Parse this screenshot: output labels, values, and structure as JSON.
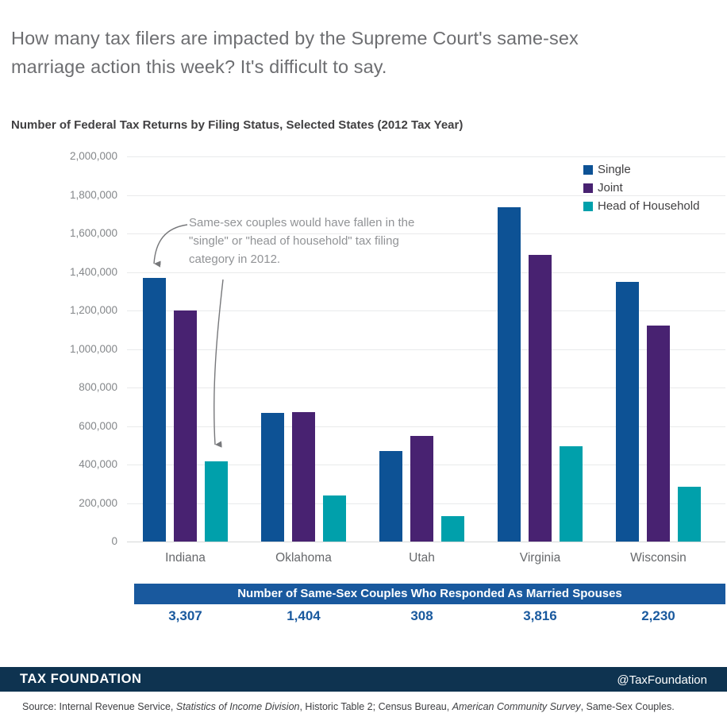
{
  "page": {
    "title": "How many tax filers are impacted by the Supreme Court's same-sex marriage action this week? It's difficult to say."
  },
  "chart_data": {
    "type": "bar",
    "title": "Number of Federal Tax Returns by Filing Status, Selected States (2012 Tax Year)",
    "categories": [
      "Indiana",
      "Oklahoma",
      "Utah",
      "Virginia",
      "Wisconsin"
    ],
    "series": [
      {
        "name": "Single",
        "color": "#0d5295",
        "values": [
          1370000,
          670000,
          472000,
          1735000,
          1350000
        ]
      },
      {
        "name": "Joint",
        "color": "#482271",
        "values": [
          1200000,
          672000,
          548000,
          1490000,
          1120000
        ]
      },
      {
        "name": "Head of Household",
        "color": "#00a0ab",
        "values": [
          415000,
          240000,
          130000,
          495000,
          285000
        ]
      }
    ],
    "ylim": [
      0,
      2000000
    ],
    "ytick_step": 200000,
    "grid": true,
    "legend_position": "top-right",
    "annotation": {
      "text": "Same-sex couples would have fallen in the \"single\" or \"head of household\" tax filing category in 2012."
    }
  },
  "table": {
    "header": "Number of Same-Sex Couples Who Responded As Married Spouses",
    "values": [
      "3,307",
      "1,404",
      "308",
      "3,816",
      "2,230"
    ]
  },
  "footer": {
    "brand": "TAX FOUNDATION",
    "handle": "@TaxFoundation"
  },
  "source": {
    "segments": [
      {
        "text": "Source: Internal Revenue Service, ",
        "italic": false
      },
      {
        "text": "Statistics of Income Division",
        "italic": true
      },
      {
        "text": ", Historic Table 2; Census Bureau, ",
        "italic": false
      },
      {
        "text": "American Community Survey",
        "italic": true
      },
      {
        "text": ", Same-Sex Couples.",
        "italic": false
      }
    ]
  },
  "colors": {
    "single": "#0d5295",
    "joint": "#482271",
    "head_of_household": "#00a0ab",
    "table_header_bg": "#19599e",
    "table_value_text": "#19599e",
    "footer_bg": "#0e3350",
    "title_text": "#6d6e71",
    "annotation_text": "#919396"
  }
}
